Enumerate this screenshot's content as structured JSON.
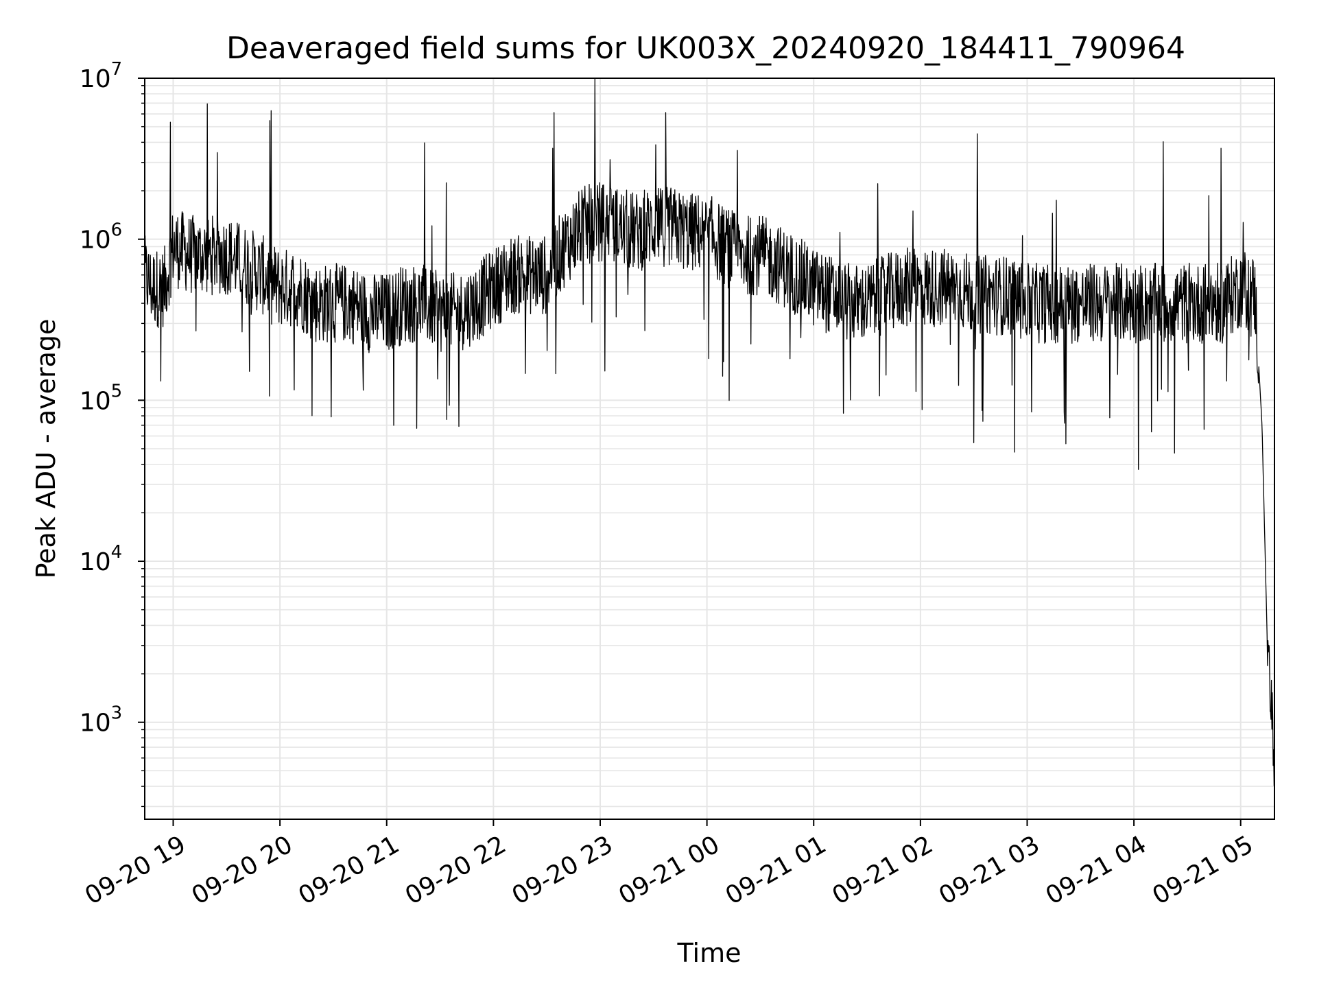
{
  "chart_data": {
    "type": "line",
    "title": "Deaveraged field sums for UK003X_20240920_184411_790964",
    "xlabel": "Time",
    "ylabel": "Peak ADU - average",
    "x_range": [
      "2024-09-20 18:44",
      "2024-09-21 05:19"
    ],
    "ylim": [
      250,
      10000000
    ],
    "y_scale": "log",
    "x_ticks": [
      "09-20 19",
      "09-20 20",
      "09-20 21",
      "09-20 22",
      "09-20 23",
      "09-21 00",
      "09-21 01",
      "09-21 02",
      "09-21 03",
      "09-21 04",
      "09-21 05"
    ],
    "y_ticks": [
      {
        "value": 1000,
        "base": "10",
        "exp": "3"
      },
      {
        "value": 10000,
        "base": "10",
        "exp": "4"
      },
      {
        "value": 100000,
        "base": "10",
        "exp": "5"
      },
      {
        "value": 1000000,
        "base": "10",
        "exp": "6"
      },
      {
        "value": 10000000,
        "base": "10",
        "exp": "7"
      }
    ],
    "grid": true,
    "line_color": "#000000",
    "series": [
      {
        "x": [
          "2024-09-20 18:44",
          "2024-09-20 18:48",
          "2024-09-20 18:55",
          "2024-09-20 19:00",
          "2024-09-20 19:10",
          "2024-09-20 19:20",
          "2024-09-20 19:30",
          "2024-09-20 19:40",
          "2024-09-20 19:50",
          "2024-09-20 20:00",
          "2024-09-20 20:10",
          "2024-09-20 20:20",
          "2024-09-20 20:30",
          "2024-09-20 20:40",
          "2024-09-20 20:50",
          "2024-09-20 21:00",
          "2024-09-20 21:10",
          "2024-09-20 21:20",
          "2024-09-20 21:30",
          "2024-09-20 21:40",
          "2024-09-20 21:50",
          "2024-09-20 22:00",
          "2024-09-20 22:10",
          "2024-09-20 22:20",
          "2024-09-20 22:30",
          "2024-09-20 22:40",
          "2024-09-20 22:50",
          "2024-09-20 23:00",
          "2024-09-20 23:10",
          "2024-09-20 23:20",
          "2024-09-20 23:30",
          "2024-09-20 23:40",
          "2024-09-20 23:50",
          "2024-09-21 00:00",
          "2024-09-21 00:10",
          "2024-09-21 00:20",
          "2024-09-21 00:30",
          "2024-09-21 00:40",
          "2024-09-21 00:50",
          "2024-09-21 01:00",
          "2024-09-21 01:10",
          "2024-09-21 01:20",
          "2024-09-21 01:30",
          "2024-09-21 01:40",
          "2024-09-21 01:50",
          "2024-09-21 02:00",
          "2024-09-21 02:10",
          "2024-09-21 02:20",
          "2024-09-21 02:30",
          "2024-09-21 02:40",
          "2024-09-21 02:50",
          "2024-09-21 03:00",
          "2024-09-21 03:10",
          "2024-09-21 03:20",
          "2024-09-21 03:30",
          "2024-09-21 03:40",
          "2024-09-21 03:50",
          "2024-09-21 04:00",
          "2024-09-21 04:10",
          "2024-09-21 04:20",
          "2024-09-21 04:30",
          "2024-09-21 04:40",
          "2024-09-21 04:50",
          "2024-09-21 05:00",
          "2024-09-21 05:08",
          "2024-09-21 05:12",
          "2024-09-21 05:15",
          "2024-09-21 05:18",
          "2024-09-21 05:19"
        ],
        "y": [
          600000,
          500000,
          500000,
          900000,
          800000,
          800000,
          800000,
          700000,
          600000,
          500000,
          500000,
          400000,
          400000,
          400000,
          350000,
          350000,
          400000,
          400000,
          350000,
          350000,
          400000,
          500000,
          600000,
          600000,
          600000,
          900000,
          1200000,
          1300000,
          1200000,
          1100000,
          1200000,
          1200000,
          1100000,
          1100000,
          900000,
          800000,
          800000,
          700000,
          600000,
          500000,
          450000,
          400000,
          400000,
          450000,
          500000,
          500000,
          500000,
          500000,
          450000,
          450000,
          450000,
          400000,
          400000,
          400000,
          400000,
          400000,
          400000,
          400000,
          400000,
          400000,
          400000,
          400000,
          400000,
          500000,
          450000,
          70000,
          3000,
          1000,
          400
        ]
      }
    ]
  }
}
